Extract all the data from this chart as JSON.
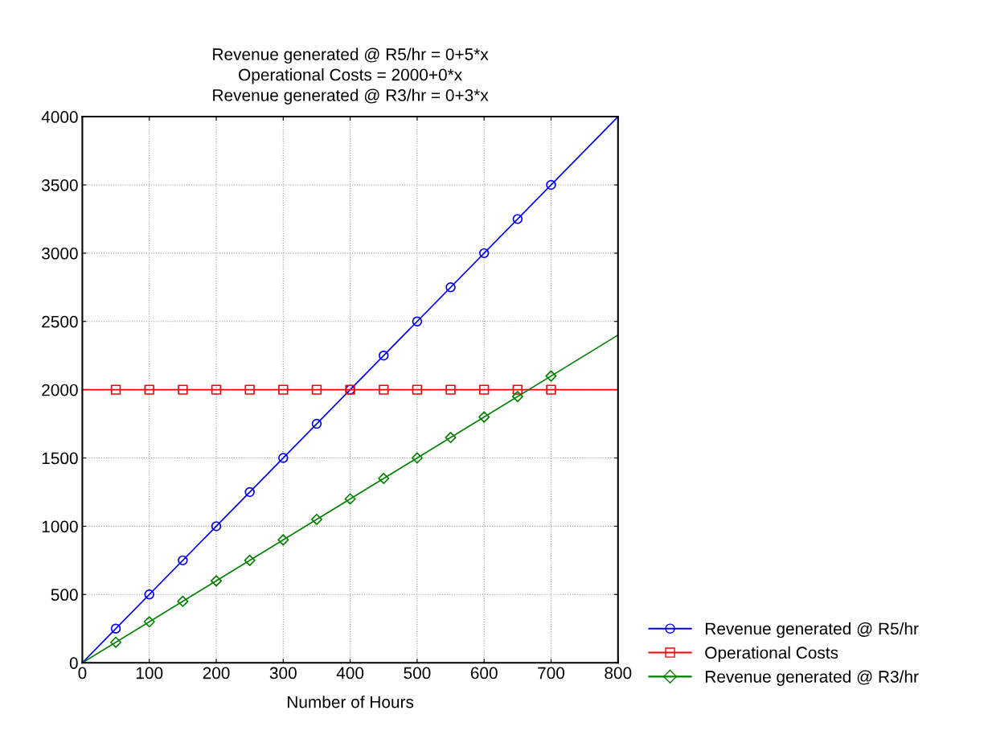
{
  "chart_data": {
    "type": "scatter",
    "title": "Revenue generated @ R5/hr = 0+5*x\nOperational Costs = 2000+0*x\nRevenue generated @ R3/hr = 0+3*x",
    "xlabel": "Number of Hours",
    "xlim": [
      0,
      800
    ],
    "xticks": [
      0,
      100,
      200,
      300,
      400,
      500,
      600,
      700,
      800
    ],
    "ylim": [
      0,
      4000
    ],
    "yticks": [
      0,
      500,
      1000,
      1500,
      2000,
      2500,
      3000,
      3500,
      4000
    ],
    "grid": true,
    "legend": "bottom right",
    "line_style": "solid",
    "series": [
      {
        "name": "Revenue generated @ R5/hr",
        "color": "#0000ff",
        "marker": "circle",
        "x": [
          50,
          100,
          150,
          200,
          250,
          300,
          350,
          400,
          450,
          500,
          550,
          600,
          650,
          700
        ],
        "values": [
          250,
          500,
          750,
          1000,
          1250,
          1500,
          1750,
          2000,
          2250,
          2500,
          2750,
          3000,
          3250,
          3500
        ]
      },
      {
        "name": "Operational Costs",
        "color": "#ff0000",
        "marker": "square",
        "x": [
          50,
          100,
          150,
          200,
          250,
          300,
          350,
          400,
          450,
          500,
          550,
          600,
          650,
          700
        ],
        "values": [
          2000,
          2000,
          2000,
          2000,
          2000,
          2000,
          2000,
          2000,
          2000,
          2000,
          2000,
          2000,
          2000,
          2000
        ]
      },
      {
        "name": "Revenue generated @ R3/hr",
        "color": "#008000",
        "marker": "diamond",
        "x": [
          50,
          100,
          150,
          200,
          250,
          300,
          350,
          400,
          450,
          500,
          550,
          600,
          650,
          700
        ],
        "values": [
          150,
          300,
          450,
          600,
          750,
          900,
          1050,
          1200,
          1350,
          1500,
          1650,
          1800,
          1950,
          2100
        ]
      },
      {
        "type": "line",
        "color": "#0000ff",
        "x": [
          0,
          800
        ],
        "values": [
          0,
          4000
        ]
      },
      {
        "type": "line",
        "color": "#ff0000",
        "x": [
          0,
          800
        ],
        "values": [
          2000,
          2000
        ]
      },
      {
        "type": "line",
        "color": "#008000",
        "x": [
          0,
          800
        ],
        "values": [
          0,
          2400
        ]
      }
    ]
  }
}
